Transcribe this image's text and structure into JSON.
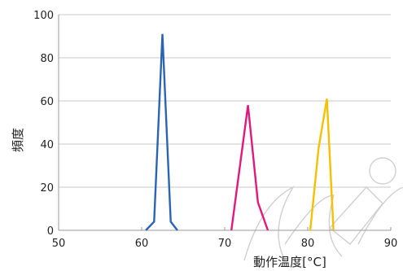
{
  "chart_data": {
    "type": "line",
    "ylabel": "頻度",
    "xlabel": "動作温度[°C]",
    "xlim": [
      50,
      90
    ],
    "ylim": [
      0,
      100
    ],
    "xticks": [
      50,
      60,
      70,
      80,
      90
    ],
    "yticks": [
      0,
      20,
      40,
      60,
      80,
      100
    ],
    "xtick_labels": [
      "50",
      "60",
      "70",
      "80",
      "90"
    ],
    "ytick_labels": [
      "0",
      "20",
      "40",
      "60",
      "80",
      "100"
    ],
    "grid": "horizontal",
    "series": [
      {
        "color": "#2b63b5",
        "x": [
          60.5,
          61.5,
          62.5,
          63.5,
          64.3
        ],
        "y": [
          0,
          4,
          91,
          4,
          0
        ]
      },
      {
        "color": "#e0197d",
        "x": [
          70.8,
          72.8,
          74.0,
          75.2
        ],
        "y": [
          0,
          58,
          13,
          0
        ]
      },
      {
        "color": "#f5c000",
        "x": [
          80.3,
          81.3,
          82.3,
          83.1
        ],
        "y": [
          0,
          38,
          61,
          0
        ]
      }
    ]
  },
  "colors": {
    "grid": "#c8c8c8",
    "axis": "#9a9a9a",
    "text": "#222222",
    "watermark": "#d0d0d0"
  }
}
